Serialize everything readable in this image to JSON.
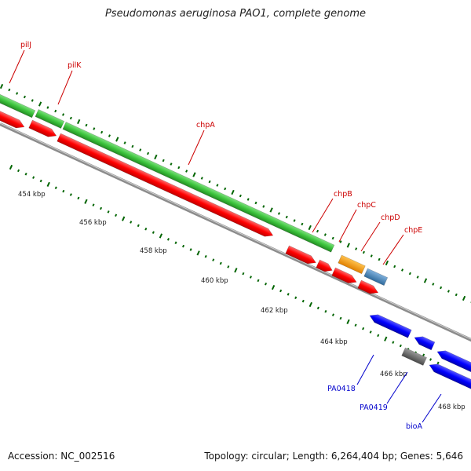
{
  "title": "Pseudomonas aeruginosa PAO1, complete genome",
  "footer": {
    "accession": "Accession: NC_002516",
    "summary": "Topology: circular; Length: 6,264,404 bp; Genes: 5,646"
  },
  "colors": {
    "forward_gene": "#ff0000",
    "reverse_gene": "#0000ff",
    "cds_track": "#3cc43c",
    "backbone": "#909090",
    "gene_other_orange": "#ff9900",
    "gene_other_steelblue": "#4682b4",
    "gene_other_gray": "#666666",
    "tick": "#006400",
    "label_forward": "#cc0000",
    "label_reverse": "#0000cc"
  },
  "scale_labels": [
    "454 kbp",
    "456 kbp",
    "458 kbp",
    "460 kbp",
    "462 kbp",
    "464 kbp",
    "466 kbp",
    "468 kbp"
  ],
  "gene_labels": {
    "forward": [
      "pilJ",
      "pilK",
      "chpA",
      "chpB",
      "chpC",
      "chpD",
      "chpE"
    ],
    "reverse": [
      "PA0418",
      "PA0419",
      "bioA"
    ]
  }
}
